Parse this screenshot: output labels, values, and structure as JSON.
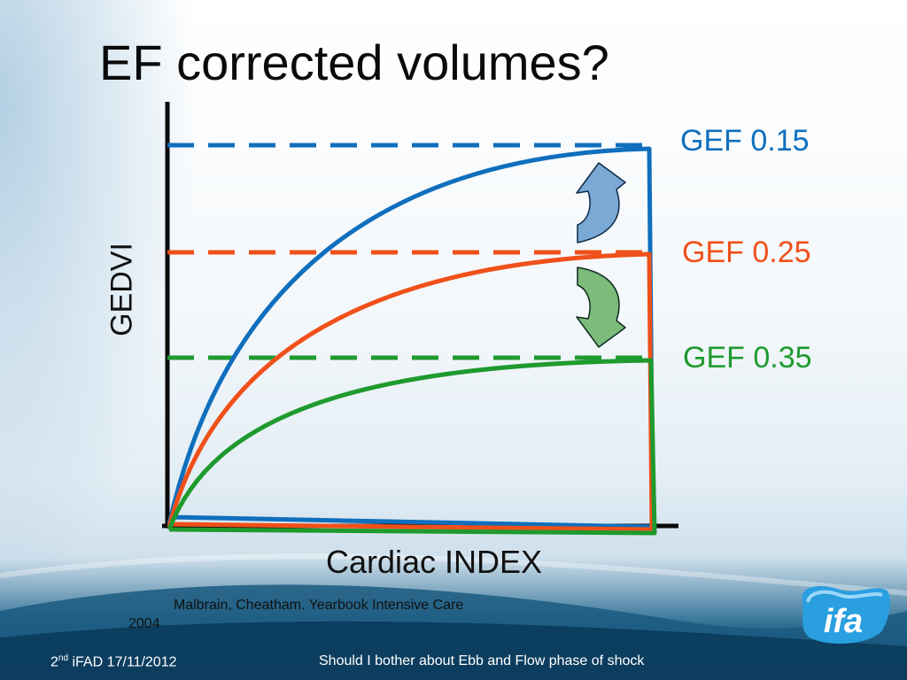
{
  "slide": {
    "title": "EF corrected volumes?",
    "reference_line1": "Malbrain, Cheatham. Yearbook Intensive Care",
    "reference_line2": "2004",
    "footer_ordinal": "2",
    "footer_ordinal_suffix": "nd",
    "footer_left_rest": " iFAD 17/11/2012",
    "footer_center": "Should I bother about Ebb and Flow phase of shock",
    "logo_text": "ifa"
  },
  "chart_data": {
    "type": "line",
    "xlabel": "Cardiac INDEX",
    "ylabel": "GEDVI",
    "series": [
      {
        "name": "GEF 0.15",
        "color": "#0f6fbd"
      },
      {
        "name": "GEF 0.25",
        "color": "#f0501a"
      },
      {
        "name": "GEF 0.35",
        "color": "#1f9a2e"
      }
    ],
    "arrows": [
      {
        "direction": "up",
        "color": "#7aa9d6"
      },
      {
        "direction": "down",
        "color": "#7dbb7a"
      }
    ]
  }
}
